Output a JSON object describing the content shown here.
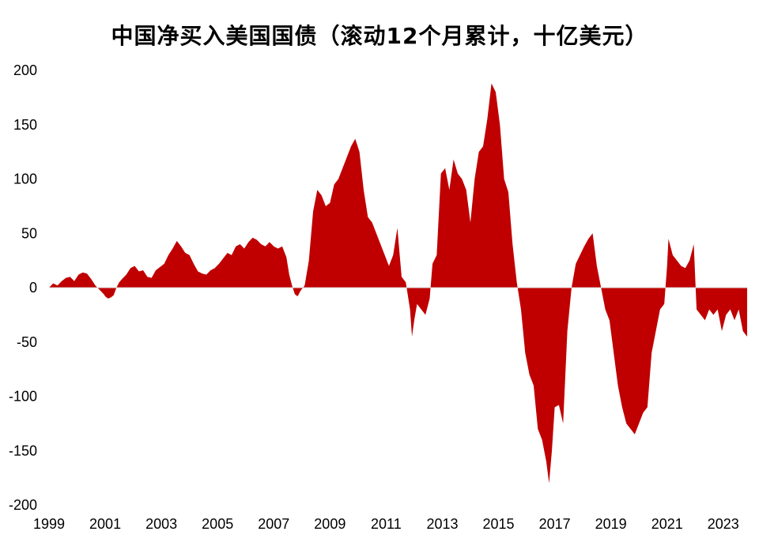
{
  "chart_data": {
    "type": "area",
    "title": "中国净买入美国国债（滚动12个月累计，十亿美元）",
    "xlabel": "",
    "ylabel": "",
    "ylim": [
      -200,
      200
    ],
    "yticks": [
      200,
      150,
      100,
      50,
      0,
      -50,
      -100,
      -150,
      -200
    ],
    "xlim": [
      1999,
      2023.85
    ],
    "xticks": [
      1999,
      2001,
      2003,
      2005,
      2007,
      2009,
      2011,
      2013,
      2015,
      2017,
      2019,
      2021,
      2023
    ],
    "grid": false,
    "legend": "none",
    "fill_color": "#C00000",
    "x": [
      1999.0,
      1999.15,
      1999.3,
      1999.45,
      1999.6,
      1999.75,
      1999.9,
      2000.05,
      2000.2,
      2000.35,
      2000.5,
      2000.65,
      2000.8,
      2000.95,
      2001.0,
      2001.1,
      2001.2,
      2001.3,
      2001.4,
      2001.5,
      2001.6,
      2001.75,
      2001.9,
      2002.05,
      2002.2,
      2002.35,
      2002.5,
      2002.65,
      2002.8,
      2002.95,
      2003.1,
      2003.25,
      2003.4,
      2003.55,
      2003.7,
      2003.85,
      2004.0,
      2004.15,
      2004.3,
      2004.45,
      2004.6,
      2004.75,
      2004.9,
      2005.05,
      2005.2,
      2005.35,
      2005.5,
      2005.65,
      2005.8,
      2005.95,
      2006.1,
      2006.25,
      2006.4,
      2006.55,
      2006.7,
      2006.85,
      2007.0,
      2007.15,
      2007.3,
      2007.45,
      2007.55,
      2007.65,
      2007.75,
      2007.85,
      2007.95,
      2008.1,
      2008.25,
      2008.4,
      2008.55,
      2008.7,
      2008.85,
      2009.0,
      2009.15,
      2009.3,
      2009.45,
      2009.6,
      2009.75,
      2009.9,
      2010.05,
      2010.2,
      2010.35,
      2010.5,
      2010.65,
      2010.8,
      2010.95,
      2011.1,
      2011.25,
      2011.4,
      2011.55,
      2011.7,
      2011.85,
      2011.92,
      2012.0,
      2012.1,
      2012.25,
      2012.4,
      2012.55,
      2012.65,
      2012.8,
      2012.95,
      2013.1,
      2013.25,
      2013.4,
      2013.55,
      2013.7,
      2013.85,
      2014.0,
      2014.15,
      2014.3,
      2014.45,
      2014.6,
      2014.75,
      2014.9,
      2015.05,
      2015.2,
      2015.35,
      2015.5,
      2015.65,
      2015.8,
      2015.95,
      2016.1,
      2016.25,
      2016.4,
      2016.55,
      2016.7,
      2016.8,
      2016.9,
      2017.0,
      2017.15,
      2017.3,
      2017.45,
      2017.6,
      2017.75,
      2017.9,
      2018.05,
      2018.2,
      2018.35,
      2018.5,
      2018.65,
      2018.8,
      2018.95,
      2019.1,
      2019.25,
      2019.4,
      2019.55,
      2019.7,
      2019.85,
      2020.0,
      2020.15,
      2020.3,
      2020.45,
      2020.6,
      2020.75,
      2020.9,
      2021.0,
      2021.05,
      2021.2,
      2021.35,
      2021.5,
      2021.65,
      2021.8,
      2021.95,
      2022.05,
      2022.2,
      2022.35,
      2022.5,
      2022.65,
      2022.8,
      2022.95,
      2023.1,
      2023.25,
      2023.4,
      2023.55,
      2023.7,
      2023.85
    ],
    "y": [
      0,
      4,
      2,
      6,
      9,
      10,
      6,
      12,
      14,
      13,
      8,
      2,
      -2,
      -6,
      -8,
      -10,
      -9,
      -7,
      0,
      5,
      8,
      12,
      18,
      20,
      15,
      16,
      10,
      9,
      16,
      19,
      22,
      30,
      36,
      43,
      38,
      32,
      30,
      22,
      15,
      13,
      12,
      16,
      18,
      22,
      27,
      32,
      30,
      38,
      40,
      36,
      42,
      46,
      44,
      40,
      38,
      42,
      38,
      36,
      38,
      28,
      12,
      2,
      -6,
      -8,
      -3,
      2,
      25,
      70,
      90,
      85,
      75,
      78,
      95,
      100,
      110,
      120,
      130,
      137,
      125,
      90,
      65,
      60,
      50,
      40,
      30,
      20,
      30,
      55,
      10,
      5,
      -20,
      -45,
      -30,
      -15,
      -20,
      -25,
      -10,
      22,
      30,
      105,
      110,
      90,
      118,
      105,
      100,
      90,
      60,
      100,
      125,
      130,
      155,
      188,
      180,
      150,
      100,
      88,
      40,
      5,
      -20,
      -60,
      -80,
      -90,
      -130,
      -140,
      -160,
      -180,
      -150,
      -110,
      -108,
      -125,
      -40,
      0,
      22,
      30,
      38,
      45,
      50,
      20,
      0,
      -20,
      -30,
      -60,
      -90,
      -110,
      -125,
      -130,
      -135,
      -125,
      -115,
      -110,
      -60,
      -40,
      -20,
      -15,
      20,
      45,
      30,
      25,
      20,
      18,
      25,
      40,
      -20,
      -25,
      -30,
      -20,
      -25,
      -20,
      -40,
      -25,
      -20,
      -30,
      -20,
      -40,
      -45
    ]
  }
}
